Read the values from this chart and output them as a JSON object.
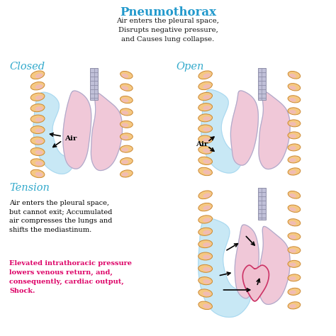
{
  "title": "Pneumothorax",
  "title_color": "#2299cc",
  "subtitle": "Air enters the pleural space,\nDisrupts negative pressure,\nand Causes lung collapse.",
  "subtitle_color": "#111111",
  "label_closed": "Closed",
  "label_open": "Open",
  "label_tension": "Tension",
  "label_color_cyan": "#33aacc",
  "tension_text1": "Air enters the pleural space,\nbut cannot exit; Accumulated\nair compresses the lungs and\nshifts the mediastinum.",
  "tension_text2": "Elevated intrathoracic pressure\nlowers venous return, and,\nconsequently, cardiac output,\nShock.",
  "tension_text2_color": "#dd0066",
  "lung_pink": "#f0c8d8",
  "lung_pink_dark": "#e8aac0",
  "lung_light_blue": "#c8e8f5",
  "rib_color": "#f5c882",
  "rib_edge": "#cc8833",
  "rib_pink": "#f0b8c8",
  "trachea_color": "#c0c0d8",
  "trachea_edge": "#9090aa",
  "heart_color": "#f0c0d0",
  "heart_edge": "#cc3366",
  "arrow_color": "#111111",
  "background": "#ffffff"
}
